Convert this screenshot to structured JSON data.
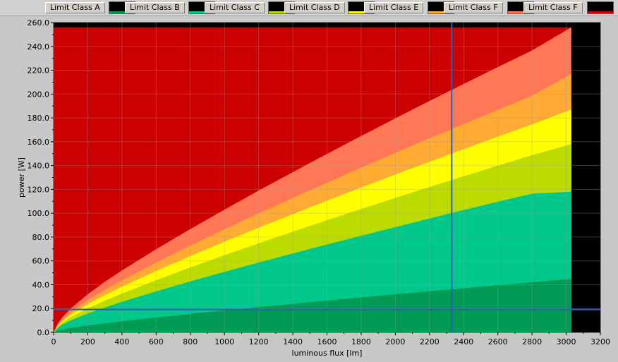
{
  "legend": {
    "items": [
      {
        "label": "Limit Class A",
        "swatch": "#009a55"
      },
      {
        "label": "Limit Class B",
        "swatch": "#00c88a"
      },
      {
        "label": "Limit Class C",
        "swatch": "#bcdc00"
      },
      {
        "label": "Limit Class D",
        "swatch": "#ffff00"
      },
      {
        "label": "Limit Class E",
        "swatch": "#ffaa33"
      },
      {
        "label": "Limit Class F",
        "swatch": "#ff7755"
      },
      {
        "label": "Limit Class F",
        "swatch": "#cc0000"
      }
    ]
  },
  "chart_data": {
    "type": "area",
    "xlabel": "luminous flux [lm]",
    "ylabel": "power [W]",
    "xlim": [
      0,
      3200
    ],
    "ylim": [
      0,
      260
    ],
    "x_ticks": [
      0,
      200,
      400,
      600,
      800,
      1000,
      1200,
      1400,
      1600,
      1800,
      2000,
      2200,
      2400,
      2600,
      2800,
      3000,
      3200
    ],
    "y_ticks": [
      "0.0",
      "20.0",
      "40.0",
      "60.0",
      "80.0",
      "100.0",
      "120.0",
      "140.0",
      "160.0",
      "180.0",
      "200.0",
      "220.0",
      "240.0",
      "260.0"
    ],
    "x": [
      0,
      25,
      50,
      100,
      200,
      300,
      400,
      600,
      800,
      1000,
      1200,
      1500,
      1800,
      2100,
      2330,
      2600,
      2800,
      3030
    ],
    "series": [
      {
        "color": "#009a55",
        "values": [
          0,
          1.5,
          2.5,
          3.8,
          5.8,
          7.6,
          9.3,
          12.5,
          15.5,
          18.4,
          21.2,
          25.3,
          29.3,
          33.2,
          36.1,
          39.5,
          42.0,
          44.8
        ]
      },
      {
        "color": "#00c88a",
        "values": [
          0,
          4.0,
          6.5,
          10.0,
          15.8,
          20.9,
          25.6,
          34.4,
          42.8,
          50.8,
          58.6,
          70.0,
          81.1,
          92.0,
          100.2,
          109.6,
          116.4,
          118.0
        ]
      },
      {
        "color": "#bcdc00",
        "values": [
          0,
          5.0,
          8.0,
          12.8,
          20.2,
          26.6,
          32.6,
          43.8,
          54.5,
          64.8,
          74.8,
          89.4,
          103.6,
          117.5,
          127.9,
          139.9,
          148.7,
          158.0
        ]
      },
      {
        "color": "#ffff00",
        "values": [
          0,
          5.8,
          9.4,
          15.0,
          23.7,
          31.3,
          38.3,
          51.5,
          64.0,
          76.1,
          87.8,
          104.9,
          121.6,
          137.9,
          150.1,
          164.3,
          174.5,
          187.0
        ]
      },
      {
        "color": "#ffaa33",
        "values": [
          0,
          6.5,
          10.5,
          17.0,
          27.0,
          35.6,
          43.6,
          58.6,
          72.8,
          86.5,
          99.9,
          119.3,
          138.3,
          156.9,
          170.7,
          186.8,
          198.5,
          217.0
        ]
      },
      {
        "color": "#ff7755",
        "values": [
          0,
          7.5,
          12.5,
          20.0,
          32.0,
          42.5,
          52.0,
          69.8,
          86.7,
          103.0,
          119.0,
          142.2,
          164.8,
          187.0,
          203.5,
          222.7,
          236.6,
          256.0
        ]
      },
      {
        "color": "#cc0000",
        "values": [
          256,
          256,
          256,
          256,
          256,
          256,
          256,
          256,
          256,
          256,
          256,
          256,
          256,
          256,
          256,
          256,
          256,
          256
        ]
      }
    ],
    "cursor": {
      "x": 2330,
      "y": 19.2,
      "color": "#2a5fb0"
    },
    "background": "#000000",
    "grid": true
  }
}
